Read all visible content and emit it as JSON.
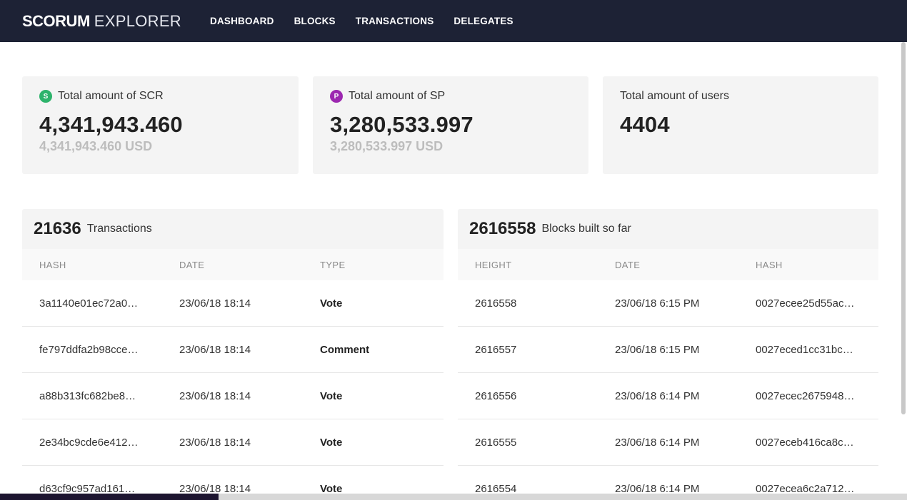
{
  "brand": {
    "bold": "SCORUM",
    "light": "EXPLORER"
  },
  "nav": [
    "DASHBOARD",
    "BLOCKS",
    "TRANSACTIONS",
    "DELEGATES"
  ],
  "stats": {
    "scr": {
      "badge": "S",
      "badge_color": "#2db36b",
      "title": "Total amount of SCR",
      "value": "4,341,943.460",
      "usd": "4,341,943.460 USD"
    },
    "sp": {
      "badge": "P",
      "badge_color": "#9c27b0",
      "title": "Total amount of SP",
      "value": "3,280,533.997",
      "usd": "3,280,533.997 USD"
    },
    "users": {
      "title": "Total amount of users",
      "value": "4404"
    }
  },
  "transactions": {
    "count": "21636",
    "label": "Transactions",
    "columns": [
      "HASH",
      "DATE",
      "TYPE"
    ],
    "rows": [
      {
        "hash": "3a1140e01ec72a0…",
        "date": "23/06/18 18:14",
        "type": "Vote"
      },
      {
        "hash": "fe797ddfa2b98cce…",
        "date": "23/06/18 18:14",
        "type": "Comment"
      },
      {
        "hash": "a88b313fc682be8…",
        "date": "23/06/18 18:14",
        "type": "Vote"
      },
      {
        "hash": "2e34bc9cde6e412…",
        "date": "23/06/18 18:14",
        "type": "Vote"
      },
      {
        "hash": "d63cf9c957ad161…",
        "date": "23/06/18 18:14",
        "type": "Vote"
      }
    ]
  },
  "blocks": {
    "count": "2616558",
    "label": "Blocks built so far",
    "columns": [
      "HEIGHT",
      "DATE",
      "HASH"
    ],
    "rows": [
      {
        "height": "2616558",
        "date": "23/06/18 6:15 PM",
        "hash": "0027ecee25d55ac…"
      },
      {
        "height": "2616557",
        "date": "23/06/18 6:15 PM",
        "hash": "0027eced1cc31bc…"
      },
      {
        "height": "2616556",
        "date": "23/06/18 6:14 PM",
        "hash": "0027ecec2675948…"
      },
      {
        "height": "2616555",
        "date": "23/06/18 6:14 PM",
        "hash": "0027eceb416ca8c…"
      },
      {
        "height": "2616554",
        "date": "23/06/18 6:14 PM",
        "hash": "0027ecea6c2a712…"
      }
    ]
  }
}
